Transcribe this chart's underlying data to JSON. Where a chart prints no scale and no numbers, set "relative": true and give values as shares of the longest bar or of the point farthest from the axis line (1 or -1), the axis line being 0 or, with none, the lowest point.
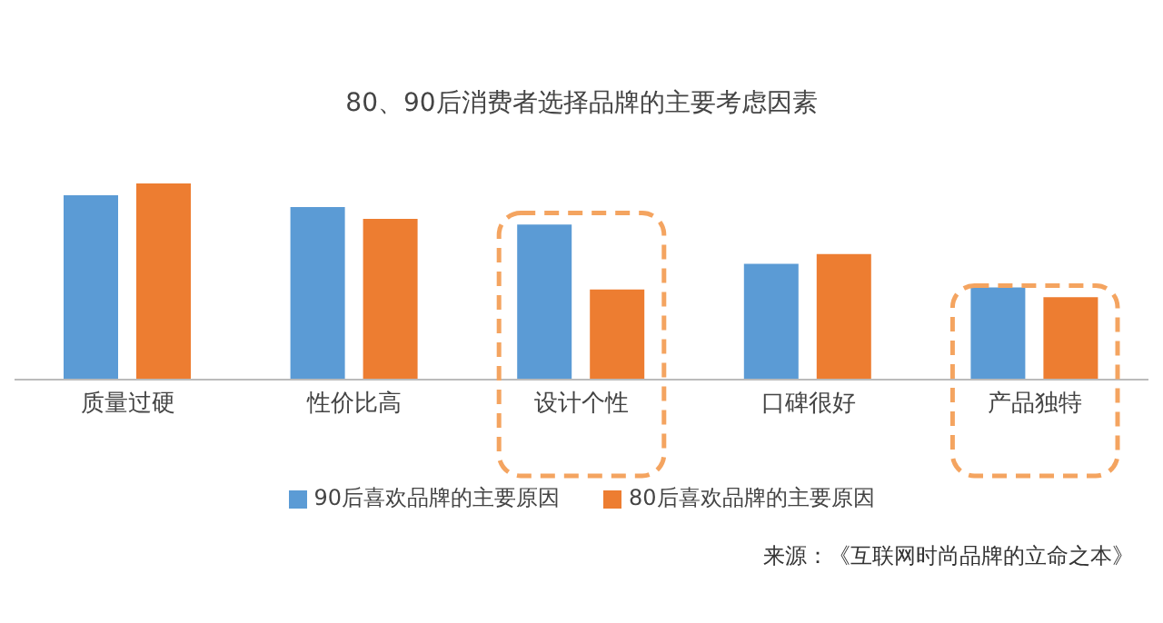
{
  "chart_data": {
    "type": "bar",
    "title": "80、90后消费者选择品牌的主要考虑因素",
    "categories": [
      "质量过硬",
      "性价比高",
      "设计个性",
      "口碑很好",
      "产品独特"
    ],
    "relative": true,
    "series": [
      {
        "name": "90后喜欢品牌的主要原因",
        "color": "#5b9bd5",
        "values": [
          0.94,
          0.88,
          0.79,
          0.59,
          0.47
        ]
      },
      {
        "name": "80后喜欢品牌的主要原因",
        "color": "#ed7d31",
        "values": [
          1,
          0.82,
          0.46,
          0.64,
          0.42
        ]
      }
    ],
    "legend": "bottom",
    "annotations": [
      "来源：《互联网时尚品牌的立命之本》"
    ]
  }
}
